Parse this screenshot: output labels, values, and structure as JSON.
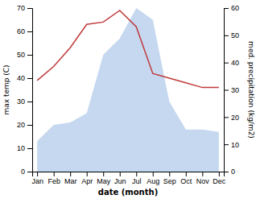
{
  "chart_data": {
    "type": "line",
    "categories": [
      "Jan",
      "Feb",
      "Mar",
      "Apr",
      "May",
      "Jun",
      "Jul",
      "Aug",
      "Sep",
      "Oct",
      "Nov",
      "Dec"
    ],
    "series": [
      {
        "type": "area",
        "color": "#c5d8f0",
        "values": [
          13,
          20,
          21,
          25,
          50,
          57,
          70,
          65,
          30,
          18,
          18,
          17
        ]
      },
      {
        "type": "line",
        "color": "#c0393b",
        "values": [
          39,
          45,
          53,
          63,
          64,
          69,
          62,
          42,
          40,
          38,
          36,
          36
        ]
      }
    ],
    "xlabel": "date (month)",
    "ylabel": "max temp (C)",
    "y2label": "med. precipitation (kg/m2)",
    "ylim": [
      0,
      70
    ],
    "yticks": [
      0,
      10,
      20,
      30,
      40,
      50,
      60,
      70
    ],
    "y2lim": [
      0,
      60
    ],
    "y2ticks": [
      0,
      10,
      20,
      30,
      40,
      50,
      60
    ],
    "grid": false
  }
}
